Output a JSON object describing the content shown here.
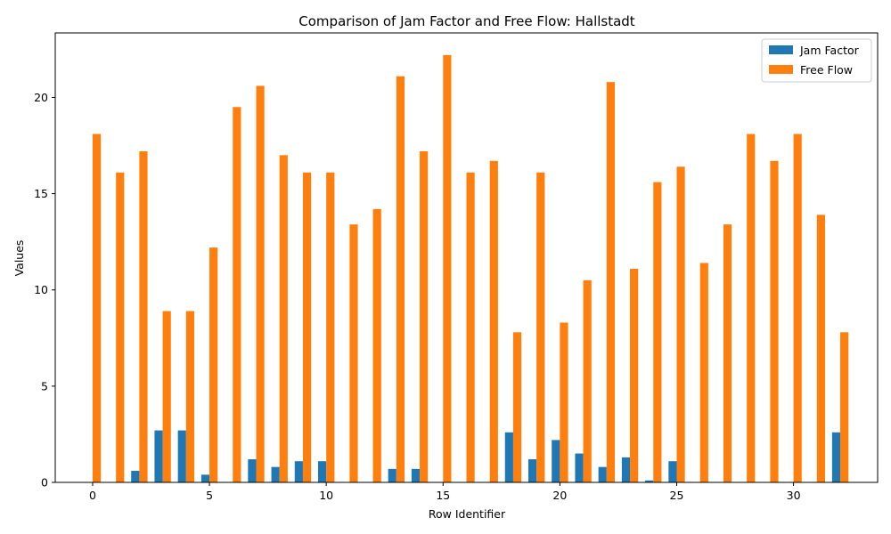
{
  "chart_data": {
    "type": "bar",
    "title": "Comparison of Jam Factor and Free Flow: Hallstadt",
    "xlabel": "Row Identifier",
    "ylabel": "Values",
    "x": [
      0,
      1,
      2,
      3,
      4,
      5,
      6,
      7,
      8,
      9,
      10,
      11,
      12,
      13,
      14,
      15,
      16,
      17,
      18,
      19,
      20,
      21,
      22,
      23,
      24,
      25,
      26,
      27,
      28,
      29,
      30,
      31,
      32
    ],
    "xlim": [
      -1.6,
      33.6
    ],
    "ylim": [
      0,
      23.35
    ],
    "xticks": [
      0,
      5,
      10,
      15,
      20,
      25,
      30
    ],
    "yticks": [
      0,
      5,
      10,
      15,
      20
    ],
    "legend_position": "top-right",
    "series": [
      {
        "name": "Jam Factor",
        "color": "#1f77b4",
        "values": [
          0,
          0,
          0.6,
          2.7,
          2.7,
          0.4,
          0,
          1.2,
          0.8,
          1.1,
          1.1,
          0,
          0,
          0.7,
          0.7,
          0,
          0,
          0,
          2.6,
          1.2,
          2.2,
          1.5,
          0.8,
          1.3,
          0.1,
          1.1,
          0,
          0,
          0,
          0,
          0,
          0,
          2.6
        ]
      },
      {
        "name": "Free Flow",
        "color": "#ff7f0e",
        "values": [
          18.1,
          16.1,
          17.2,
          8.9,
          8.9,
          12.2,
          19.5,
          20.6,
          17.0,
          16.1,
          16.1,
          13.4,
          14.2,
          21.1,
          17.2,
          22.2,
          16.1,
          16.7,
          7.8,
          16.1,
          8.3,
          10.5,
          20.8,
          11.1,
          15.6,
          16.4,
          11.4,
          13.4,
          18.1,
          16.7,
          18.1,
          13.9,
          7.8
        ]
      }
    ]
  }
}
